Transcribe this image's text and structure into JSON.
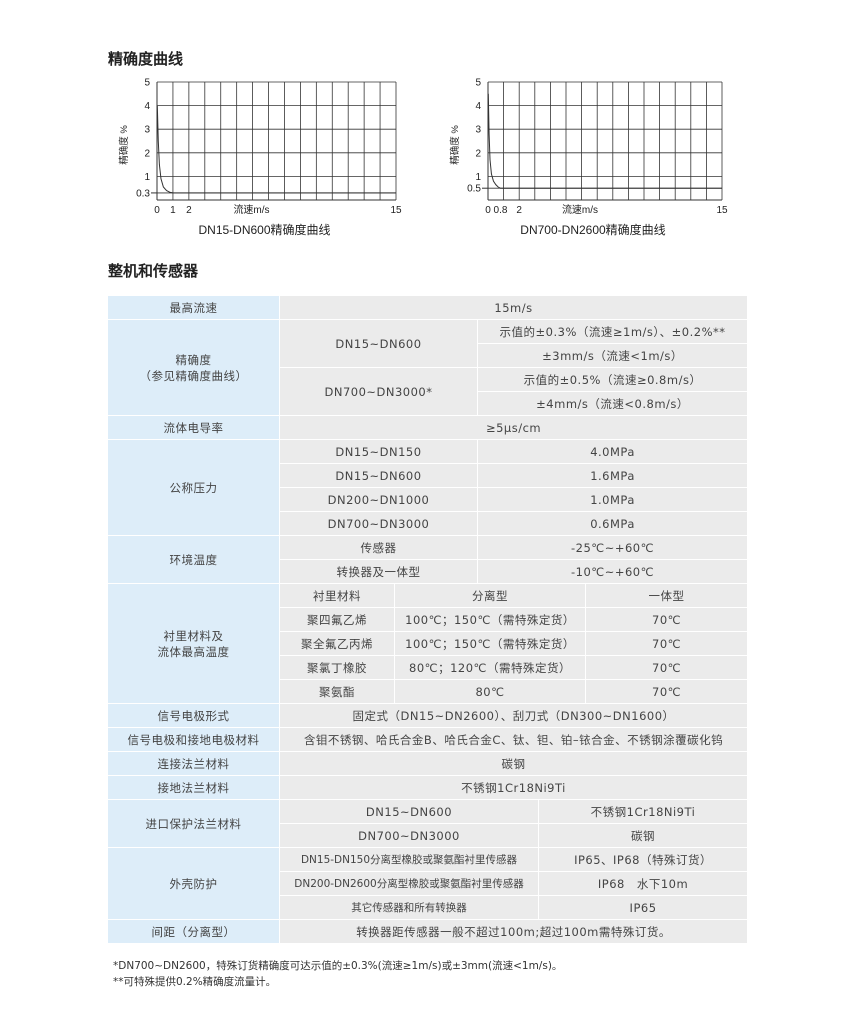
{
  "sections": {
    "curve_title": "精确度曲线",
    "spec_title": "整机和传感器"
  },
  "chart_data": [
    {
      "type": "line",
      "title": "DN15-DN600精确度曲线",
      "xlabel": "流速m/s",
      "ylabel": "精确度 %",
      "xlim": [
        0,
        15
      ],
      "ylim": [
        0,
        5
      ],
      "xticks": [
        "0",
        "1",
        "2",
        "15"
      ],
      "xtick_values": [
        0,
        1,
        2,
        15
      ],
      "yticks": [
        "0.3",
        "1",
        "2",
        "3",
        "4",
        "5"
      ],
      "ytick_values": [
        0.3,
        1,
        2,
        3,
        4,
        5
      ],
      "grid": true,
      "x": [
        0.02,
        0.08,
        0.15,
        0.25,
        0.4,
        0.6,
        0.8,
        1,
        15
      ],
      "y": [
        4,
        2.5,
        1.5,
        0.9,
        0.55,
        0.4,
        0.33,
        0.3,
        0.3
      ]
    },
    {
      "type": "line",
      "title": "DN700-DN2600精确度曲线",
      "xlabel": "流速m/s",
      "ylabel": "精确度 %",
      "xlim": [
        0,
        15
      ],
      "ylim": [
        0,
        5
      ],
      "xticks": [
        "0",
        "0.8",
        "2",
        "15"
      ],
      "xtick_values": [
        0,
        0.8,
        2,
        15
      ],
      "yticks": [
        "0.5",
        "1",
        "2",
        "3",
        "4",
        "5"
      ],
      "ytick_values": [
        0.5,
        1,
        2,
        3,
        4,
        5
      ],
      "grid": true,
      "x": [
        0.02,
        0.07,
        0.13,
        0.22,
        0.35,
        0.5,
        0.65,
        0.8,
        15
      ],
      "y": [
        4.5,
        2.8,
        1.7,
        1.1,
        0.8,
        0.65,
        0.55,
        0.5,
        0.5
      ]
    }
  ],
  "table": {
    "max_speed": {
      "label": "最高流速",
      "value": "15m/s"
    },
    "accuracy": {
      "label": "精确度\n（参见精确度曲线）",
      "g1": "DN15~DN600",
      "g1a": "示值的±0.3%（流速≥1m/s）、±0.2%**",
      "g1b": "±3mm/s（流速<1m/s）",
      "g2": "DN700~DN3000*",
      "g2a": "示值的±0.5%（流速≥0.8m/s）",
      "g2b": "±4mm/s（流速<0.8m/s）"
    },
    "conductivity": {
      "label": "流体电导率",
      "value": "≥5μs/cm"
    },
    "pressure": {
      "label": "公称压力",
      "rows": [
        [
          "DN15~DN150",
          "4.0MPa"
        ],
        [
          "DN15~DN600",
          "1.6MPa"
        ],
        [
          "DN200~DN1000",
          "1.0MPa"
        ],
        [
          "DN700~DN3000",
          "0.6MPa"
        ]
      ]
    },
    "temp": {
      "label": "环境温度",
      "rows": [
        [
          "传感器",
          "-25℃~+60℃"
        ],
        [
          "转换器及一体型",
          "-10℃~+60℃"
        ]
      ]
    },
    "lining": {
      "label": "衬里材料及\n流体最高温度",
      "rows": [
        [
          "衬里材料",
          "分离型",
          "一体型"
        ],
        [
          "聚四氟乙烯",
          "100℃；150℃（需特殊定货）",
          "70℃"
        ],
        [
          "聚全氟乙丙烯",
          "100℃；150℃（需特殊定货）",
          "70℃"
        ],
        [
          "聚氯丁橡胶",
          "80℃；120℃（需特殊定货）",
          "70℃"
        ],
        [
          "聚氨酯",
          "80℃",
          "70℃"
        ]
      ]
    },
    "electrode_form": {
      "label": "信号电极形式",
      "value": "固定式（DN15~DN2600）、刮刀式（DN300~DN1600）"
    },
    "electrode_material": {
      "label": "信号电极和接地电极材料",
      "value": "含钼不锈钢、哈氏合金B、哈氏合金C、钛、钽、铂–铱合金、不锈钢涂覆碳化钨"
    },
    "flange": {
      "label": "连接法兰材料",
      "value": "碳钢"
    },
    "ground_flange": {
      "label": "接地法兰材料",
      "value": "不锈钢1Cr18Ni9Ti"
    },
    "inlet": {
      "label": "进口保护法兰材料",
      "rows": [
        [
          "DN15~DN600",
          "不锈钢1Cr18Ni9Ti"
        ],
        [
          "DN700~DN3000",
          "碳钢"
        ]
      ]
    },
    "housing": {
      "label": "外壳防护",
      "rows": [
        [
          "DN15-DN150分离型橡胶或聚氨酯衬里传感器",
          "IP65、IP68（特殊订货）"
        ],
        [
          "DN200-DN2600分离型橡胶或聚氨酯衬里传感器",
          "IP68　水下10m"
        ],
        [
          "其它传感器和所有转换器",
          "IP65"
        ]
      ]
    },
    "distance": {
      "label": "间距（分离型）",
      "value": "转换器距传感器一般不超过100m;超过100m需特殊订货。"
    }
  },
  "notes": [
    "*DN700~DN2600，特殊订货精确度可达示值的±0.3%(流速≥1m/s)或±3mm(流速<1m/s)。",
    "**可特殊提供0.2%精确度流量计。"
  ]
}
